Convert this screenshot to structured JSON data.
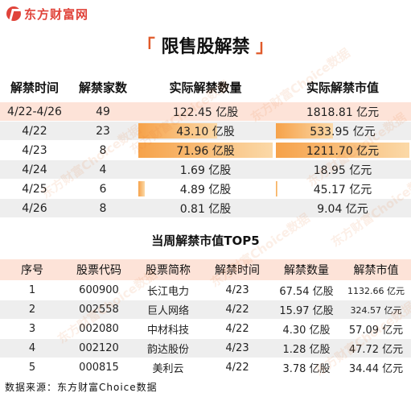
{
  "brand": {
    "name": "东方财富网",
    "color": "#e0433a"
  },
  "title": {
    "open": "「",
    "text": "限售股解禁",
    "close": "」"
  },
  "weekly": {
    "headers": [
      "解禁时间",
      "解禁家数",
      "实际解禁数量",
      "实际解禁市值"
    ],
    "rows": [
      {
        "date": "4/22-4/26",
        "count": "49",
        "qty": "122.45 亿股",
        "value": "1818.81 亿元",
        "qty_fill": 0,
        "value_fill": 0,
        "style": "r-hl"
      },
      {
        "date": "4/22",
        "count": "23",
        "qty": "43.10 亿股",
        "value": "533.95 亿元",
        "qty_fill": 0.599,
        "value_fill": 0.441,
        "style": "r-alt"
      },
      {
        "date": "4/23",
        "count": "8",
        "qty": "71.96 亿股",
        "value": "1211.70 亿元",
        "qty_fill": 1.0,
        "value_fill": 1.0,
        "style": "r-wht"
      },
      {
        "date": "4/24",
        "count": "4",
        "qty": "1.69 亿股",
        "value": "18.95 亿元",
        "qty_fill": 0.023,
        "value_fill": 0.016,
        "style": "r-alt"
      },
      {
        "date": "4/25",
        "count": "6",
        "qty": "4.89 亿股",
        "value": "45.17 亿元",
        "qty_fill": 0.068,
        "value_fill": 0.037,
        "style": "r-wht"
      },
      {
        "date": "4/26",
        "count": "8",
        "qty": "0.81 亿股",
        "value": "9.04 亿元",
        "qty_fill": 0.011,
        "value_fill": 0.007,
        "style": "r-alt"
      }
    ],
    "bar_color": "#f6a24a"
  },
  "top5": {
    "title": "当周解禁市值TOP5",
    "headers": [
      "序号",
      "股票代码",
      "股票简称",
      "解禁时间",
      "解禁数量",
      "解禁市值"
    ],
    "rows": [
      {
        "no": "1",
        "code": "600900",
        "name": "长江电力",
        "date": "4/23",
        "qty": "67.54 亿股",
        "value": "1132.66 亿元",
        "small": true
      },
      {
        "no": "2",
        "code": "002558",
        "name": "巨人网络",
        "date": "4/22",
        "qty": "15.97 亿股",
        "value": "324.57 亿元",
        "small": true
      },
      {
        "no": "3",
        "code": "002080",
        "name": "中材科技",
        "date": "4/22",
        "qty": "4.30 亿股",
        "value": "57.09 亿元",
        "small": false
      },
      {
        "no": "4",
        "code": "002120",
        "name": "韵达股份",
        "date": "4/23",
        "qty": "1.28 亿股",
        "value": "47.72 亿元",
        "small": false
      },
      {
        "no": "5",
        "code": "000815",
        "name": "美利云",
        "date": "4/22",
        "qty": "3.78 亿股",
        "value": "34.44 亿元",
        "small": false
      }
    ]
  },
  "source": "数据来源：东方财富Choice数据",
  "watermark": "东方财富Choice数据"
}
